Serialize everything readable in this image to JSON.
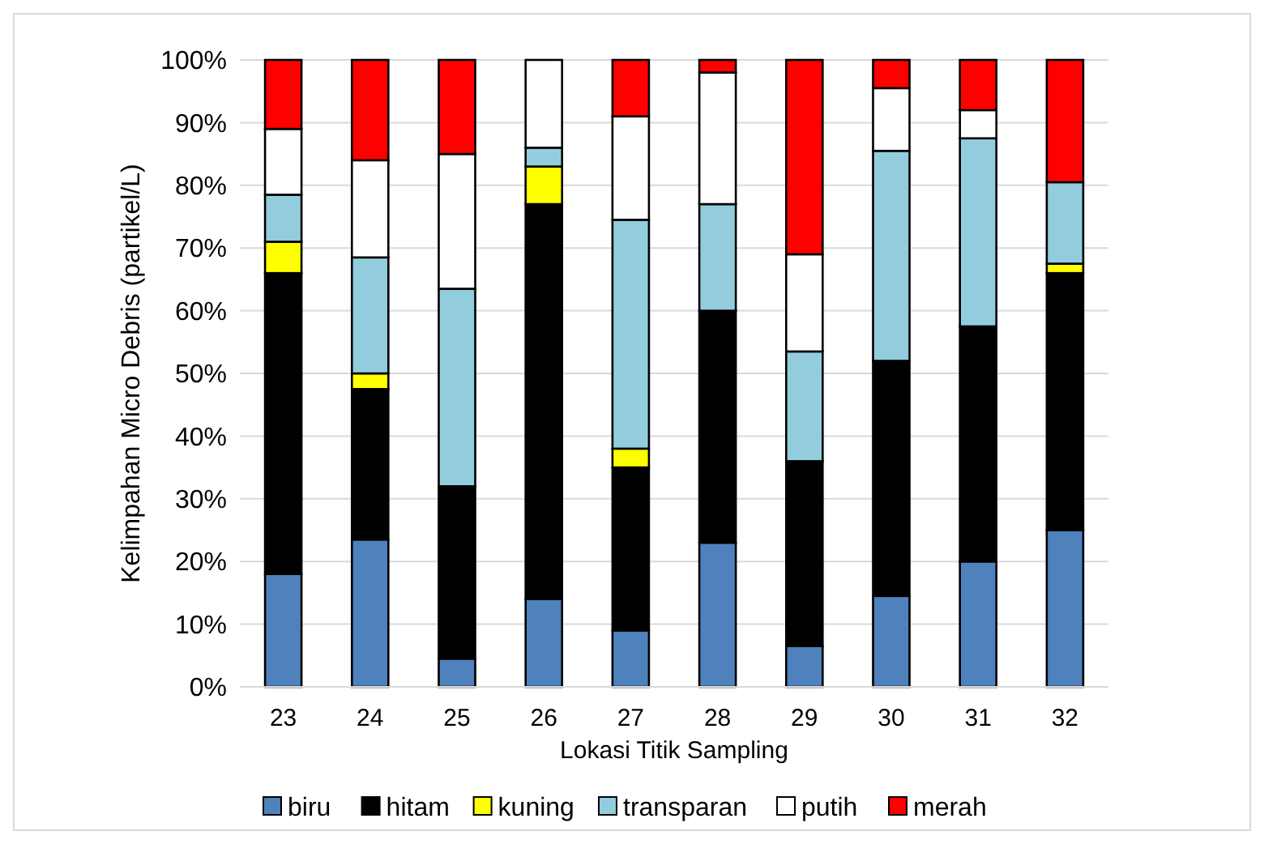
{
  "chart_data": {
    "type": "bar",
    "stacked": true,
    "xlabel": "Lokasi Titik Sampling",
    "ylabel": "Kelimpahan Micro Debris (partikel/L)",
    "categories": [
      "23",
      "24",
      "25",
      "26",
      "27",
      "28",
      "29",
      "30",
      "31",
      "32"
    ],
    "series": [
      {
        "name": "biru",
        "color": "#4f81bd",
        "values": [
          18,
          23.5,
          4.5,
          14,
          9,
          23,
          6.5,
          14.5,
          20,
          25
        ]
      },
      {
        "name": "hitam",
        "color": "#000000",
        "values": [
          48,
          24,
          27.5,
          63,
          26,
          37,
          29.5,
          37.5,
          37.5,
          41
        ]
      },
      {
        "name": "kuning",
        "color": "#ffff00",
        "values": [
          5,
          2.5,
          0,
          6,
          3,
          0,
          0,
          0,
          0,
          1.5
        ]
      },
      {
        "name": "transparan",
        "color": "#93cddd",
        "values": [
          7.5,
          18.5,
          31.5,
          3,
          36.5,
          17,
          17.5,
          33.5,
          30,
          13
        ]
      },
      {
        "name": "putih",
        "color": "#ffffff",
        "values": [
          10.5,
          15.5,
          21.5,
          14,
          16.5,
          21,
          15.5,
          10,
          4.5,
          0
        ]
      },
      {
        "name": "merah",
        "color": "#ff0000",
        "values": [
          11,
          16,
          15,
          0,
          9,
          2,
          31,
          4.5,
          8,
          19.5
        ]
      }
    ],
    "ylim": [
      0,
      100
    ],
    "yticks": [
      {
        "value": 0,
        "label": "0%"
      },
      {
        "value": 10,
        "label": "10%"
      },
      {
        "value": 20,
        "label": "20%"
      },
      {
        "value": 30,
        "label": "30%"
      },
      {
        "value": 40,
        "label": "40%"
      },
      {
        "value": 50,
        "label": "50%"
      },
      {
        "value": 60,
        "label": "60%"
      },
      {
        "value": 70,
        "label": "70%"
      },
      {
        "value": 80,
        "label": "80%"
      },
      {
        "value": 90,
        "label": "90%"
      },
      {
        "value": 100,
        "label": "100%"
      }
    ],
    "grid": "y",
    "legend": "bottom"
  }
}
